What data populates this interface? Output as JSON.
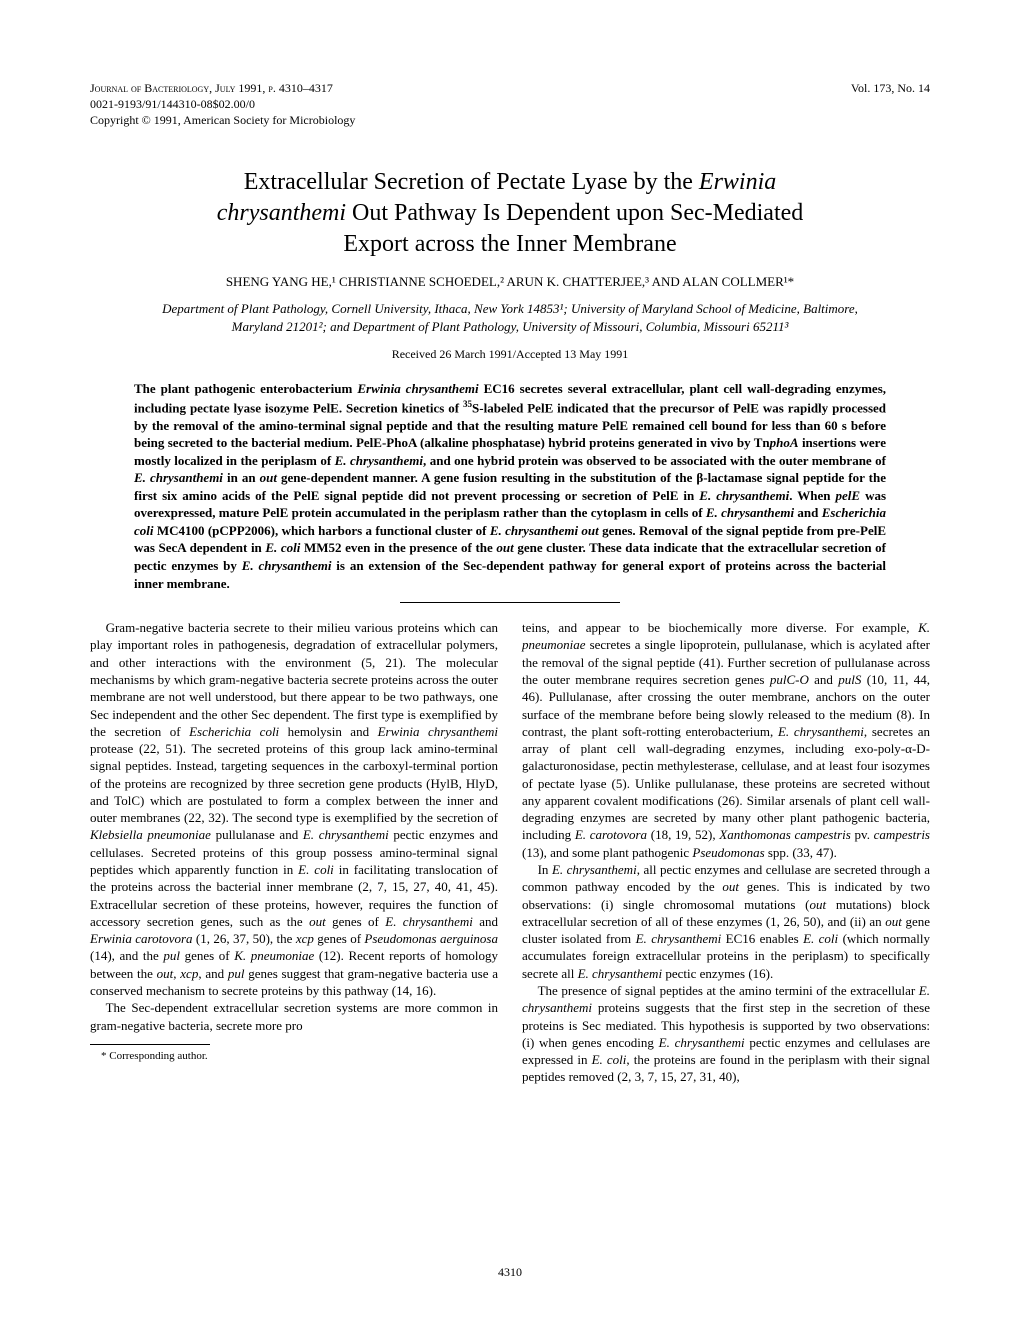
{
  "header": {
    "journal_line": "Journal of Bacteriology, July 1991, p. 4310–4317",
    "issn_line": "0021-9193/91/144310-08$02.00/0",
    "copyright_line": "Copyright © 1991, American Society for Microbiology",
    "vol_issue": "Vol. 173, No. 14"
  },
  "title": {
    "line1_pre": "Extracellular Secretion of Pectate Lyase by the ",
    "line1_italic": "Erwinia",
    "line2_italic": "chrysanthemi",
    "line2_rest": " Out Pathway Is Dependent upon Sec-Mediated",
    "line3": "Export across the Inner Membrane"
  },
  "authors": "SHENG YANG HE,¹ CHRISTIANNE SCHOEDEL,² ARUN K. CHATTERJEE,³ AND ALAN COLLMER¹*",
  "affiliations": "Department of Plant Pathology, Cornell University, Ithaca, New York 14853¹; University of Maryland School of Medicine, Baltimore, Maryland 21201²; and Department of Plant Pathology, University of Missouri, Columbia, Missouri 65211³",
  "received": "Received 26 March 1991/Accepted 13 May 1991",
  "abstract": {
    "t1": "The plant pathogenic enterobacterium ",
    "i1": "Erwinia chrysanthemi",
    "t2": " EC16 secretes several extracellular, plant cell wall-degrading enzymes, including pectate lyase isozyme PelE. Secretion kinetics of ",
    "sup1": "35",
    "t3": "S-labeled PelE indicated that the precursor of PelE was rapidly processed by the removal of the amino-terminal signal peptide and that the resulting mature PelE remained cell bound for less than 60 s before being secreted to the bacterial medium. PelE-PhoA (alkaline phosphatase) hybrid proteins generated in vivo by Tn",
    "i2": "phoA",
    "t4": " insertions were mostly localized in the periplasm of ",
    "i3": "E. chrysanthemi",
    "t5": ", and one hybrid protein was observed to be associated with the outer membrane of ",
    "i4": "E. chrysanthemi",
    "t6": " in an ",
    "i5": "out",
    "t7": " gene-dependent manner. A gene fusion resulting in the substitution of the β-lactamase signal peptide for the first six amino acids of the PelE signal peptide did not prevent processing or secretion of PelE in ",
    "i6": "E. chrysanthemi",
    "t8": ". When ",
    "i7": "pelE",
    "t9": " was overexpressed, mature PelE protein accumulated in the periplasm rather than the cytoplasm in cells of ",
    "i8": "E. chrysanthemi",
    "t10": " and ",
    "i9": "Escherichia coli",
    "t11": " MC4100 (pCPP2006), which harbors a functional cluster of ",
    "i10": "E. chrysanthemi out",
    "t12": " genes. Removal of the signal peptide from pre-PelE was SecA dependent in ",
    "i11": "E. coli",
    "t13": " MM52 even in the presence of the ",
    "i12": "out",
    "t14": " gene cluster. These data indicate that the extracellular secretion of pectic enzymes by ",
    "i13": "E. chrysanthemi",
    "t15": " is an extension of the Sec-dependent pathway for general export of proteins across the bacterial inner membrane."
  },
  "body": {
    "p1a": "Gram-negative bacteria secrete to their milieu various proteins which can play important roles in pathogenesis, degradation of extracellular polymers, and other interactions with the environment (5, 21). The molecular mechanisms by which gram-negative bacteria secrete proteins across the outer membrane are not well understood, but there appear to be two pathways, one Sec independent and the other Sec dependent. The first type is exemplified by the secretion of ",
    "p1i1": "Escherichia coli",
    "p1b": " hemolysin and ",
    "p1i2": "Erwinia chrysanthemi",
    "p1c": " protease (22, 51). The secreted proteins of this group lack amino-terminal signal peptides. Instead, targeting sequences in the carboxyl-terminal portion of the proteins are recognized by three secretion gene products (HylB, HlyD, and TolC) which are postulated to form a complex between the inner and outer membranes (22, 32). The second type is exemplified by the secretion of ",
    "p1i3": "Klebsiella pneumoniae",
    "p1d": " pullulanase and ",
    "p1i4": "E. chrysanthemi",
    "p1e": " pectic enzymes and cellulases. Secreted proteins of this group possess amino-terminal signal peptides which apparently function in ",
    "p1i5": "E. coli",
    "p1f": " in facilitating translocation of the proteins across the bacterial inner membrane (2, 7, 15, 27, 40, 41, 45). Extracellular secretion of these proteins, however, requires the function of accessory secretion genes, such as the ",
    "p1i6": "out",
    "p1g": " genes of ",
    "p1i7": "E. chrysanthemi",
    "p1h": " and ",
    "p1i8": "Erwinia carotovora",
    "p1j": " (1, 26, 37, 50), the ",
    "p1i9": "xcp",
    "p1k": " genes of ",
    "p1i10": "Pseudomonas aerguinosa",
    "p1l": " (14), and the ",
    "p1i11": "pul",
    "p1m": " genes of ",
    "p1i12": "K. pneumoniae",
    "p1n": " (12). Recent reports of homology between the ",
    "p1i13": "out",
    "p1o": ", ",
    "p1i14": "xcp",
    "p1p": ", and ",
    "p1i15": "pul",
    "p1q": " genes suggest that gram-negative bacteria use a conserved mechanism to secrete proteins by this pathway (14, 16).",
    "p2": "The Sec-dependent extracellular secretion systems are more common in gram-negative bacteria, secrete more pro",
    "p3a": "teins, and appear to be biochemically more diverse. For example, ",
    "p3i1": "K. pneumoniae",
    "p3b": " secretes a single lipoprotein, pullulanase, which is acylated after the removal of the signal peptide (41). Further secretion of pullulanase across the outer membrane requires secretion genes ",
    "p3i2": "pulC-O",
    "p3c": " and ",
    "p3i3": "pulS",
    "p3d": " (10, 11, 44, 46). Pullulanase, after crossing the outer membrane, anchors on the outer surface of the membrane before being slowly released to the medium (8). In contrast, the plant soft-rotting enterobacterium, ",
    "p3i4": "E. chrysanthemi",
    "p3e": ", secretes an array of plant cell wall-degrading enzymes, including exo-poly-α-D-galacturonosidase, pectin methylesterase, cellulase, and at least four isozymes of pectate lyase (5). Unlike pullulanase, these proteins are secreted without any apparent covalent modifications (26). Similar arsenals of plant cell wall-degrading enzymes are secreted by many other plant pathogenic bacteria, including ",
    "p3i5": "E. carotovora",
    "p3f": " (18, 19, 52), ",
    "p3i6": "Xanthomonas campestris",
    "p3g": " pv. ",
    "p3i7": "campestris",
    "p3h": " (13), and some plant pathogenic ",
    "p3i8": "Pseudomonas",
    "p3j": " spp. (33, 47).",
    "p4a": "In ",
    "p4i1": "E. chrysanthemi",
    "p4b": ", all pectic enzymes and cellulase are secreted through a common pathway encoded by the ",
    "p4i2": "out",
    "p4c": " genes. This is indicated by two observations: (i) single chromosomal mutations (",
    "p4i3": "out",
    "p4d": " mutations) block extracellular secretion of all of these enzymes (1, 26, 50), and (ii) an ",
    "p4i4": "out",
    "p4e": " gene cluster isolated from ",
    "p4i5": "E. chrysanthemi",
    "p4f": " EC16 enables ",
    "p4i6": "E. coli",
    "p4g": " (which normally accumulates foreign extracellular proteins in the periplasm) to specifically secrete all ",
    "p4i7": "E. chrysanthemi",
    "p4h": " pectic enzymes (16).",
    "p5a": "The presence of signal peptides at the amino termini of the extracellular ",
    "p5i1": "E. chrysanthemi",
    "p5b": " proteins suggests that the first step in the secretion of these proteins is Sec mediated. This hypothesis is supported by two observations: (i) when genes encoding ",
    "p5i2": "E. chrysanthemi",
    "p5c": " pectic enzymes and cellulases are expressed in ",
    "p5i3": "E. coli",
    "p5d": ", the proteins are found in the periplasm with their signal peptides removed (2, 3, 7, 15, 27, 31, 40),"
  },
  "footnote": "* Corresponding author.",
  "page_number": "4310"
}
